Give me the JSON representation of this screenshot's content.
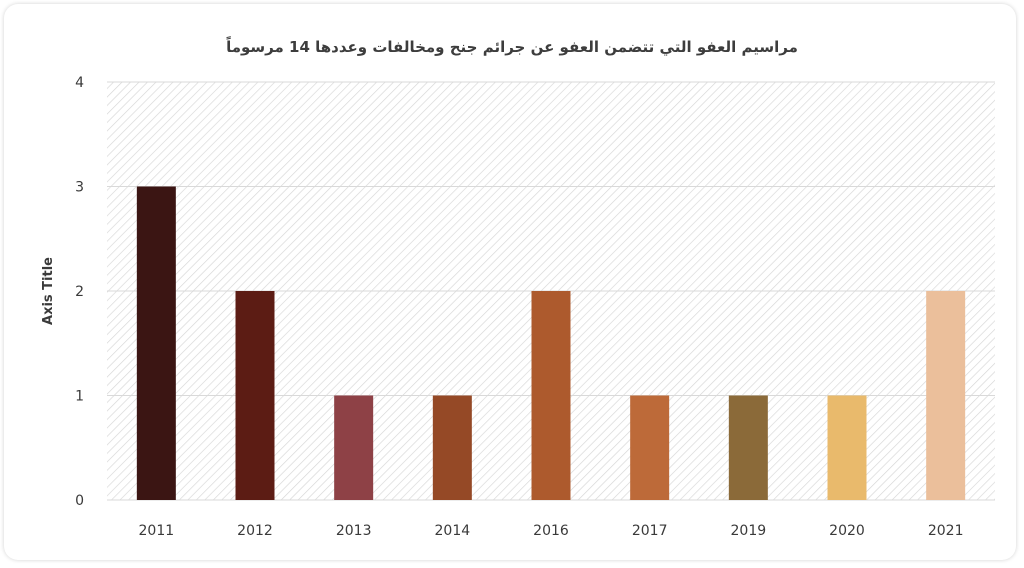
{
  "chart_data": {
    "type": "bar",
    "title": "مراسيم العفو التي تتضمن العفو عن جرائم جنح ومخالفات وعددها 14 مرسوماً",
    "xlabel": "",
    "ylabel": "Axis Title",
    "ylim": [
      0,
      4
    ],
    "yticks": [
      0,
      1,
      2,
      3,
      4
    ],
    "grid": true,
    "legend": "none",
    "categories": [
      "2011",
      "2012",
      "2013",
      "2014",
      "2016",
      "2017",
      "2019",
      "2020",
      "2021"
    ],
    "values": [
      3,
      2,
      1,
      1,
      2,
      1,
      1,
      1,
      2
    ],
    "colors": [
      "#3b1513",
      "#5c1c14",
      "#8e4146",
      "#954926",
      "#ad5a2d",
      "#bd6a39",
      "#8b6a39",
      "#e9ba6c",
      "#ebbf9b"
    ]
  }
}
